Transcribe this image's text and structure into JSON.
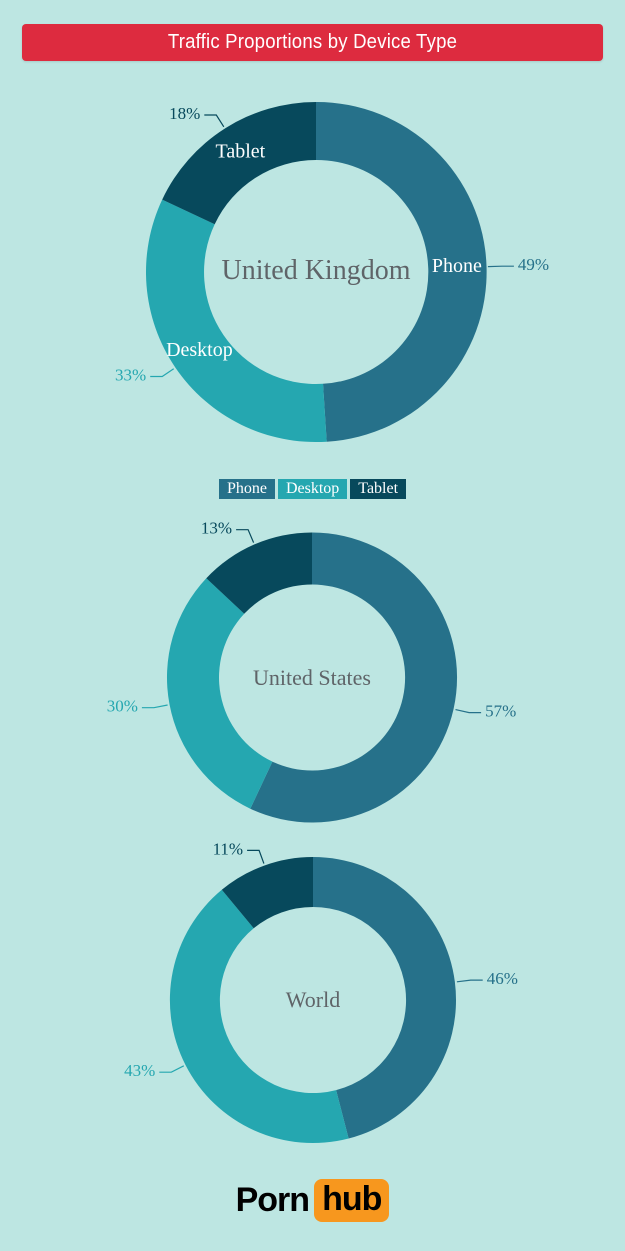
{
  "header": {
    "title": "Traffic Proportions by Device Type"
  },
  "colors": {
    "phone": "#26718a",
    "desktop": "#25a7b0",
    "tablet": "#07495c",
    "header_bg": "#dd2b3f",
    "header_text": "#ffffff",
    "center_text": "#5f6468",
    "slice_label_text": "#ffffff",
    "background_inner": "#def3f0",
    "background_outer": "#a4dcd8",
    "logo_text": "#000000",
    "logo_box": "#f7971e"
  },
  "legend": {
    "items": [
      {
        "label": "Phone",
        "color_key": "phone"
      },
      {
        "label": "Desktop",
        "color_key": "desktop"
      },
      {
        "label": "Tablet",
        "color_key": "tablet"
      }
    ]
  },
  "chart_data": [
    {
      "type": "pie",
      "donut": true,
      "id": "uk",
      "title": "United Kingdom",
      "start_angle_deg": 0,
      "direction": "clockwise",
      "value_suffix": "%",
      "show_slice_labels": true,
      "series": [
        {
          "name": "Phone",
          "value": 49
        },
        {
          "name": "Desktop",
          "value": 33
        },
        {
          "name": "Tablet",
          "value": 18
        }
      ]
    },
    {
      "type": "pie",
      "donut": true,
      "id": "us",
      "title": "United States",
      "start_angle_deg": 0,
      "direction": "clockwise",
      "value_suffix": "%",
      "show_slice_labels": false,
      "series": [
        {
          "name": "Phone",
          "value": 57
        },
        {
          "name": "Desktop",
          "value": 30
        },
        {
          "name": "Tablet",
          "value": 13
        }
      ]
    },
    {
      "type": "pie",
      "donut": true,
      "id": "world",
      "title": "World",
      "start_angle_deg": 0,
      "direction": "clockwise",
      "value_suffix": "%",
      "show_slice_labels": false,
      "series": [
        {
          "name": "Phone",
          "value": 46
        },
        {
          "name": "Desktop",
          "value": 43
        },
        {
          "name": "Tablet",
          "value": 11
        }
      ]
    }
  ],
  "footer": {
    "logo_text_left": "Porn",
    "logo_text_right": "hub"
  }
}
